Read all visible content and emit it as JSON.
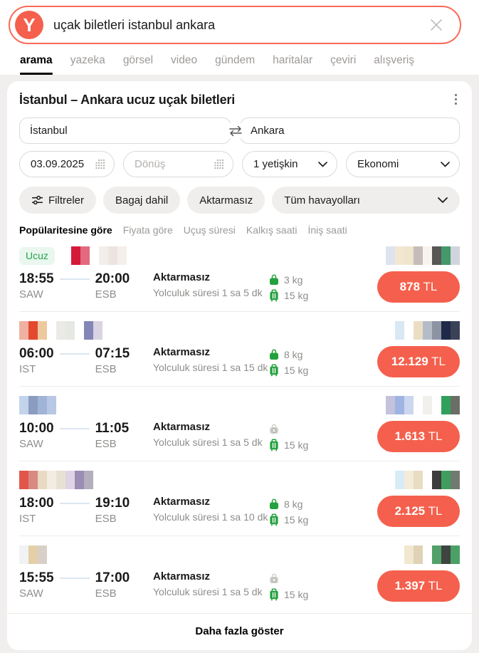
{
  "search": {
    "query": "uçak biletleri istanbul ankara",
    "logo_letter": "Y"
  },
  "tabs": [
    {
      "label": "arama",
      "active": true
    },
    {
      "label": "yazeka",
      "active": false
    },
    {
      "label": "görsel",
      "active": false
    },
    {
      "label": "video",
      "active": false
    },
    {
      "label": "gündem",
      "active": false
    },
    {
      "label": "haritalar",
      "active": false
    },
    {
      "label": "çeviri",
      "active": false
    },
    {
      "label": "alışveriş",
      "active": false
    }
  ],
  "widget": {
    "title": "İstanbul – Ankara ucuz uçak biletleri",
    "from": "İstanbul",
    "to": "Ankara",
    "depart_date": "03.09.2025",
    "return_placeholder": "Dönüş",
    "passengers": "1 yetişkin",
    "cabin_class": "Ekonomi",
    "filters": [
      "Filtreler",
      "Bagaj dahil",
      "Aktarmasız",
      "Tüm havayolları"
    ],
    "sort_options": [
      {
        "label": "Popülaritesine göre",
        "active": true
      },
      {
        "label": "Fiyata göre",
        "active": false
      },
      {
        "label": "Uçuş süresi",
        "active": false
      },
      {
        "label": "Kalkış saati",
        "active": false
      },
      {
        "label": "İniş saati",
        "active": false
      }
    ],
    "cheap_badge": "Ucuz",
    "show_more": "Daha fazla göster"
  },
  "flights": [
    {
      "dep_time": "18:55",
      "dep_code": "SAW",
      "arr_time": "20:00",
      "arr_code": "ESB",
      "transfer": "Aktarmasız",
      "duration": "Yolculuk süresi 1 sa 5 dk",
      "cabin_bag": "3 kg",
      "no_cabin": false,
      "checked_bag": "15 kg",
      "price": "878",
      "currency": "TL",
      "cheap": true,
      "left_pixels": [
        "#d4haha",
        "#d41a38",
        "#e2697f",
        "",
        "#f3eeea",
        "#ece4e1",
        "#f4efec"
      ],
      "right_pixels": [
        "#dde4f0",
        "#f2e8d2",
        "#efe5cd",
        "#c6bcba",
        "#f7f4ed",
        "#595756",
        "#43996a",
        "#d0d4dc"
      ]
    },
    {
      "dep_time": "06:00",
      "dep_code": "IST",
      "arr_time": "07:15",
      "arr_code": "ESB",
      "transfer": "Aktarmasız",
      "duration": "Yolculuk süresi 1 sa 15 dk",
      "cabin_bag": "8 kg",
      "no_cabin": false,
      "checked_bag": "15 kg",
      "price": "12.129",
      "currency": "TL",
      "cheap": false,
      "left_pixels": [
        "#f0b0a2",
        "#e2492e",
        "#edc99e",
        "",
        "#eceae6",
        "#e6e8e3",
        "",
        "#8486b8",
        "#d9d3e2"
      ],
      "right_pixels": [
        "#d8e8f4",
        "",
        "#ecdec4",
        "#b4bcc8",
        "#8c94a4",
        "#1e2a48",
        "#3a4258"
      ]
    },
    {
      "dep_time": "10:00",
      "dep_code": "SAW",
      "arr_time": "11:05",
      "arr_code": "ESB",
      "transfer": "Aktarmasız",
      "duration": "Yolculuk süresi 1 sa 5 dk",
      "cabin_bag": "",
      "no_cabin": true,
      "checked_bag": "15 kg",
      "price": "1.613",
      "currency": "TL",
      "cheap": false,
      "left_pixels": [
        "#c2d4ec",
        "#8c9cc0",
        "#a0b4d8",
        "#b8c8e4"
      ],
      "right_pixels": [
        "#c4c2dc",
        "#9fb4e2",
        "#ccd6ee",
        "",
        "#f2f0ec",
        "",
        "#31a05c",
        "#6a6f66"
      ]
    },
    {
      "dep_time": "18:00",
      "dep_code": "IST",
      "arr_time": "19:10",
      "arr_code": "ESB",
      "transfer": "Aktarmasız",
      "duration": "Yolculuk süresi 1 sa 10 dk",
      "cabin_bag": "8 kg",
      "no_cabin": false,
      "checked_bag": "15 kg",
      "price": "2.125",
      "currency": "TL",
      "cheap": false,
      "left_pixels": [
        "#e2564a",
        "#d88a80",
        "#ead9c2",
        "#f2ece2",
        "#e8e0d2",
        "#ded4e6",
        "#9b8cb4",
        "#b4aebe"
      ],
      "right_pixels": [
        "#d8ecf8",
        "#f4ecd8",
        "#e8dcc2",
        "",
        "#3c3c3c",
        "#3f9e5e",
        "#707a70"
      ]
    },
    {
      "dep_time": "15:55",
      "dep_code": "SAW",
      "arr_time": "17:00",
      "arr_code": "ESB",
      "transfer": "Aktarmasız",
      "duration": "Yolculuk süresi 1 sa 5 dk",
      "cabin_bag": "",
      "no_cabin": true,
      "checked_bag": "15 kg",
      "price": "1.397",
      "currency": "TL",
      "cheap": false,
      "left_pixels": [
        "#f0f2f4",
        "#e4cfa8",
        "#d8d0c8"
      ],
      "right_pixels": [
        "#f2e8d0",
        "#e0d2b4",
        "",
        "#52a06a",
        "#3e4440",
        "#4aa066"
      ]
    }
  ],
  "colors": {
    "accent": "#f4604d",
    "search_border": "#fb6a57",
    "badge_green_bg": "#e9f7ee",
    "badge_green_text": "#24a24c",
    "bag_green": "#23a13d",
    "page_bg": "#f0efed"
  }
}
